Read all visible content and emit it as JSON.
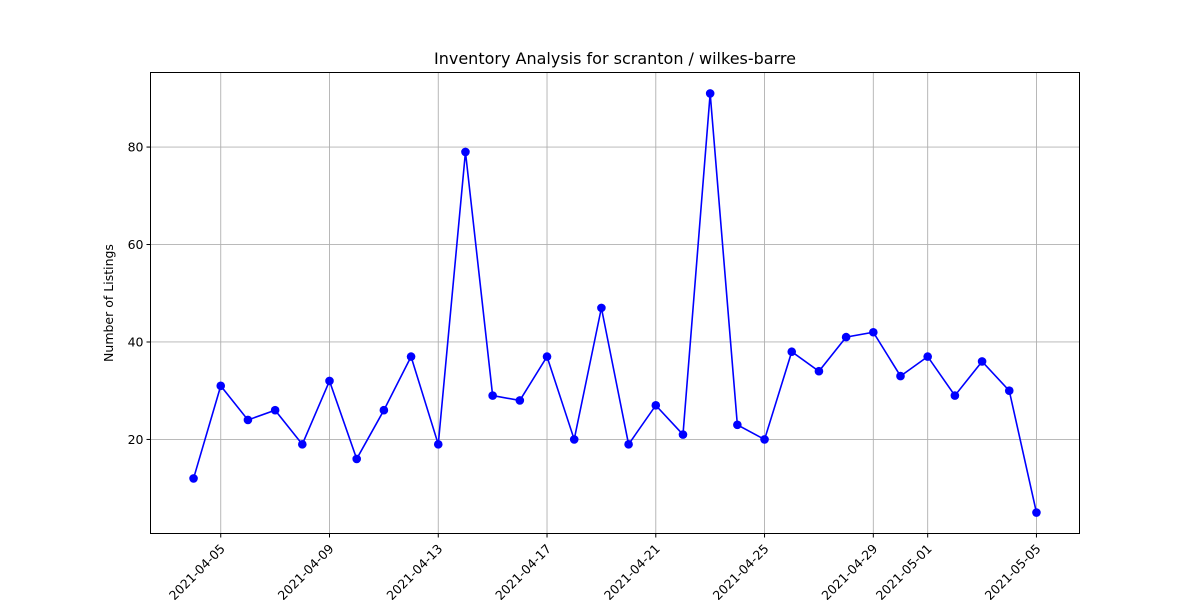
{
  "chart_data": {
    "type": "line",
    "title": "Inventory Analysis for scranton / wilkes-barre",
    "xlabel": "",
    "ylabel": "Number of Listings",
    "x_tick_labels": [
      "2021-04-05",
      "2021-04-09",
      "2021-04-13",
      "2021-04-17",
      "2021-04-21",
      "2021-04-25",
      "2021-04-29",
      "2021-05-01",
      "2021-05-05"
    ],
    "y_ticks": [
      20,
      40,
      60,
      80
    ],
    "ylim": [
      0.7,
      95.3
    ],
    "xlim": [
      "2021-04-02T10:00",
      "2021-05-06T14:00"
    ],
    "grid": true,
    "series": [
      {
        "color": "#0000ff",
        "marker": "circle",
        "x": [
          "2021-04-04",
          "2021-04-05",
          "2021-04-06",
          "2021-04-07",
          "2021-04-08",
          "2021-04-09",
          "2021-04-10",
          "2021-04-11",
          "2021-04-12",
          "2021-04-13",
          "2021-04-14",
          "2021-04-15",
          "2021-04-16",
          "2021-04-17",
          "2021-04-18",
          "2021-04-19",
          "2021-04-20",
          "2021-04-21",
          "2021-04-22",
          "2021-04-23",
          "2021-04-24",
          "2021-04-25",
          "2021-04-26",
          "2021-04-27",
          "2021-04-28",
          "2021-04-29",
          "2021-04-30",
          "2021-05-01",
          "2021-05-02",
          "2021-05-03",
          "2021-05-04",
          "2021-05-05"
        ],
        "values": [
          12,
          31,
          24,
          26,
          19,
          32,
          16,
          26,
          37,
          19,
          79,
          29,
          28,
          37,
          20,
          47,
          19,
          27,
          21,
          91,
          23,
          20,
          38,
          34,
          41,
          42,
          33,
          37,
          29,
          36,
          30,
          5
        ]
      }
    ]
  }
}
